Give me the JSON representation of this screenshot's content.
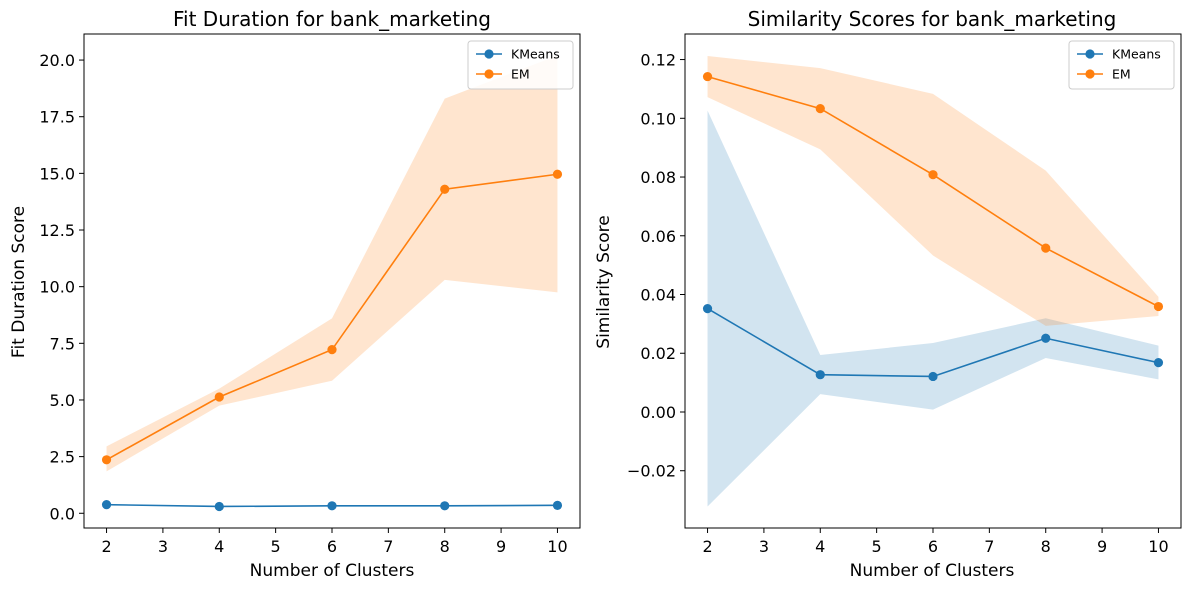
{
  "chart_data": [
    {
      "type": "line",
      "title": "Fit Duration for bank_marketing",
      "xlabel": "Number of Clusters",
      "ylabel": "Fit Duration Score",
      "x": [
        2,
        4,
        6,
        8,
        10
      ],
      "xticks": [
        2,
        3,
        4,
        5,
        6,
        7,
        8,
        9,
        10
      ],
      "xlim": [
        1.6,
        10.4
      ],
      "yticks": [
        0.0,
        2.5,
        5.0,
        7.5,
        10.0,
        12.5,
        15.0,
        17.5,
        20.0
      ],
      "ytick_labels": [
        "0.0",
        "2.5",
        "5.0",
        "7.5",
        "10.0",
        "12.5",
        "15.0",
        "17.5",
        "20.0"
      ],
      "ylim": [
        -0.65,
        21.15
      ],
      "legend_position": "top-right",
      "series": [
        {
          "name": "KMeans",
          "color": "#1f77b4",
          "values": [
            0.38,
            0.3,
            0.33,
            0.33,
            0.35
          ],
          "band_low": [
            0.38,
            0.3,
            0.33,
            0.33,
            0.35
          ],
          "band_high": [
            0.38,
            0.3,
            0.33,
            0.33,
            0.35
          ]
        },
        {
          "name": "EM",
          "color": "#ff7f0e",
          "values": [
            2.36,
            5.13,
            7.22,
            14.3,
            14.96
          ],
          "band_low": [
            1.85,
            4.75,
            5.85,
            10.3,
            9.75
          ],
          "band_high": [
            2.95,
            5.5,
            8.6,
            18.3,
            20.2
          ]
        }
      ]
    },
    {
      "type": "line",
      "title": "Similarity Scores for bank_marketing",
      "xlabel": "Number of Clusters",
      "ylabel": "Similarity Score",
      "x": [
        2,
        4,
        6,
        8,
        10
      ],
      "xticks": [
        2,
        3,
        4,
        5,
        6,
        7,
        8,
        9,
        10
      ],
      "xlim": [
        1.6,
        10.4
      ],
      "yticks": [
        -0.02,
        0.0,
        0.02,
        0.04,
        0.06,
        0.08,
        0.1,
        0.12
      ],
      "ytick_labels": [
        "−0.02",
        "0.00",
        "0.02",
        "0.04",
        "0.06",
        "0.08",
        "0.10",
        "0.12"
      ],
      "ylim": [
        -0.0395,
        0.1287
      ],
      "legend_position": "top-right",
      "series": [
        {
          "name": "KMeans",
          "color": "#1f77b4",
          "values": [
            0.0352,
            0.0127,
            0.0121,
            0.0251,
            0.0168
          ],
          "band_low": [
            -0.0322,
            0.0061,
            0.0008,
            0.0184,
            0.0111
          ],
          "band_high": [
            0.1026,
            0.0194,
            0.0235,
            0.0319,
            0.0226
          ]
        },
        {
          "name": "EM",
          "color": "#ff7f0e",
          "values": [
            0.1142,
            0.1033,
            0.0808,
            0.0558,
            0.0359
          ],
          "band_low": [
            0.1072,
            0.0894,
            0.0533,
            0.0293,
            0.0327
          ],
          "band_high": [
            0.1212,
            0.1171,
            0.1083,
            0.0822,
            0.0392
          ]
        }
      ]
    }
  ]
}
